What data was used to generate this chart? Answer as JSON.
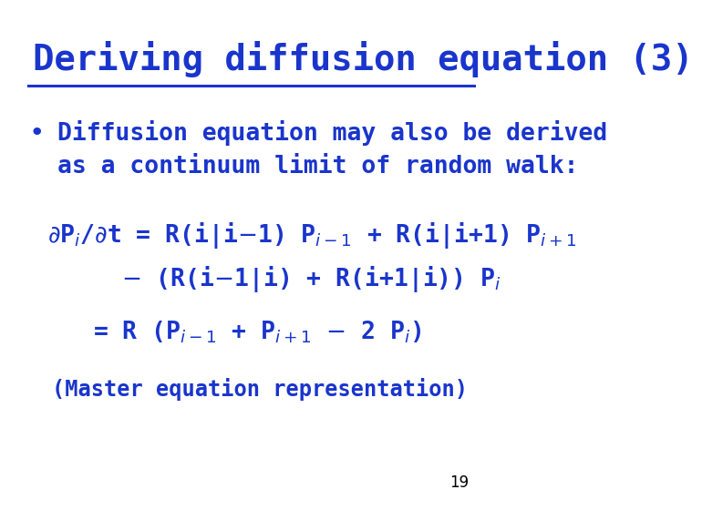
{
  "title": "Deriving diffusion equation (3)",
  "title_color": "#1a35cc",
  "title_fontsize": 28,
  "bg_color": "#ffffff",
  "line_color": "#1a35cc",
  "text_color": "#1a35cc",
  "bullet_fontsize": 19,
  "eq_fontsize": 19,
  "master_text": "(Master equation representation)",
  "master_fontsize": 17,
  "page_num": "19",
  "page_fontsize": 12
}
